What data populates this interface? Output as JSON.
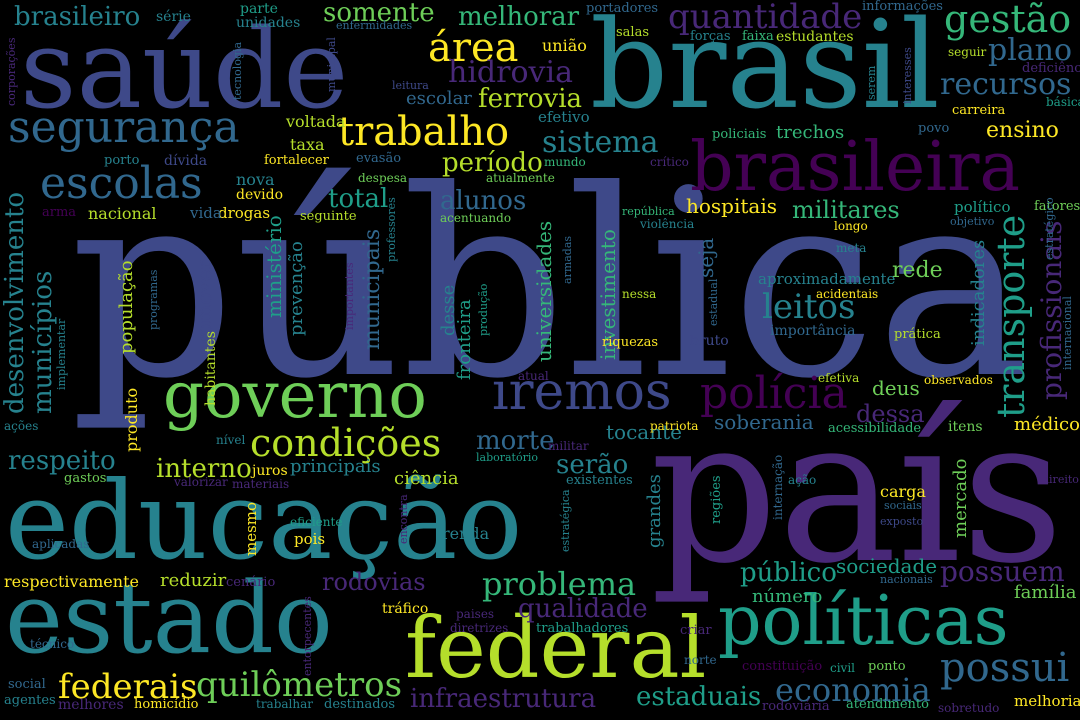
{
  "background": "#000000",
  "palette": {
    "c1": "#440154",
    "c2": "#482878",
    "c3": "#3e4989",
    "c4": "#31688e",
    "c5": "#26828e",
    "c6": "#1f9e89",
    "c7": "#35b779",
    "c8": "#6ece58",
    "c9": "#b5de2b",
    "c10": "#fde725"
  },
  "words": [
    {
      "text": "pública",
      "color": "c3"
    },
    {
      "text": "país",
      "color": "c2"
    },
    {
      "text": "educação",
      "color": "c5"
    },
    {
      "text": "saúde",
      "color": "c3"
    },
    {
      "text": "brasil",
      "color": "c5"
    },
    {
      "text": "estado",
      "color": "c5"
    },
    {
      "text": "federal",
      "color": "c9"
    },
    {
      "text": "políticas",
      "color": "c6"
    },
    {
      "text": "brasileira",
      "color": "c1"
    },
    {
      "text": "governo",
      "color": "c8"
    },
    {
      "text": "segurança",
      "color": "c4"
    },
    {
      "text": "escolas",
      "color": "c4"
    },
    {
      "text": "trabalho",
      "color": "c10"
    },
    {
      "text": "iremos",
      "color": "c3"
    },
    {
      "text": "polícia",
      "color": "c1"
    },
    {
      "text": "condições",
      "color": "c9"
    },
    {
      "text": "possui",
      "color": "c4"
    },
    {
      "text": "quilômetros",
      "color": "c8"
    },
    {
      "text": "federais",
      "color": "c10"
    },
    {
      "text": "problema",
      "color": "c7"
    },
    {
      "text": "economia",
      "color": "c4"
    },
    {
      "text": "gestão",
      "color": "c7"
    },
    {
      "text": "quantidade",
      "color": "c2"
    },
    {
      "text": "área",
      "color": "c10"
    },
    {
      "text": "hidrovia",
      "color": "c2"
    },
    {
      "text": "plano",
      "color": "c4"
    },
    {
      "text": "recursos",
      "color": "c4"
    },
    {
      "text": "ferrovia",
      "color": "c9"
    },
    {
      "text": "sistema",
      "color": "c5"
    },
    {
      "text": "período",
      "color": "c9"
    },
    {
      "text": "leitos",
      "color": "c5"
    },
    {
      "text": "militares",
      "color": "c7"
    },
    {
      "text": "transporte",
      "color": "c6"
    },
    {
      "text": "profissionais",
      "color": "c2"
    },
    {
      "text": "desenvolvimento",
      "color": "c5"
    },
    {
      "text": "municípios",
      "color": "c5"
    },
    {
      "text": "brasileiro",
      "color": "c5"
    },
    {
      "text": "somente",
      "color": "c8"
    },
    {
      "text": "melhorar",
      "color": "c7"
    },
    {
      "text": "alunos",
      "color": "c4"
    },
    {
      "text": "total",
      "color": "c6"
    },
    {
      "text": "morte",
      "color": "c4"
    },
    {
      "text": "respeito",
      "color": "c5"
    },
    {
      "text": "interno",
      "color": "c9"
    },
    {
      "text": "serão",
      "color": "c5"
    },
    {
      "text": "qualidade",
      "color": "c2"
    },
    {
      "text": "infraestrutura",
      "color": "c2"
    },
    {
      "text": "estaduais",
      "color": "c6"
    },
    {
      "text": "público",
      "color": "c6"
    },
    {
      "text": "possuem",
      "color": "c2"
    },
    {
      "text": "rodovias",
      "color": "c2"
    },
    {
      "text": "hospitais",
      "color": "c10"
    },
    {
      "text": "ensino",
      "color": "c10"
    },
    {
      "text": "rede",
      "color": "c8"
    },
    {
      "text": "dessa",
      "color": "c2"
    },
    {
      "text": "deus",
      "color": "c8"
    },
    {
      "text": "tocante",
      "color": "c5"
    },
    {
      "text": "soberania",
      "color": "c4"
    },
    {
      "text": "sociedade",
      "color": "c6"
    },
    {
      "text": "família",
      "color": "c8"
    },
    {
      "text": "médico",
      "color": "c10"
    },
    {
      "text": "principais",
      "color": "c5"
    },
    {
      "text": "ciência",
      "color": "c9"
    },
    {
      "text": "reduzir",
      "color": "c9"
    },
    {
      "text": "respectivamente",
      "color": "c10"
    },
    {
      "text": "renda",
      "color": "c5"
    },
    {
      "text": "mercado",
      "color": "c8"
    },
    {
      "text": "carga",
      "color": "c10"
    },
    {
      "text": "número",
      "color": "c7"
    },
    {
      "text": "trechos",
      "color": "c7"
    },
    {
      "text": "voltada",
      "color": "c9"
    },
    {
      "text": "taxa",
      "color": "c9"
    },
    {
      "text": "nova",
      "color": "c5"
    },
    {
      "text": "nacional",
      "color": "c9"
    },
    {
      "text": "drogas",
      "color": "c10"
    },
    {
      "text": "vida",
      "color": "c4"
    },
    {
      "text": "efetivo",
      "color": "c5"
    },
    {
      "text": "escolar",
      "color": "c4"
    },
    {
      "text": "união",
      "color": "c10"
    },
    {
      "text": "investimento",
      "color": "c7"
    },
    {
      "text": "universidades",
      "color": "c7"
    },
    {
      "text": "municipais",
      "color": "c4"
    },
    {
      "text": "ministério",
      "color": "c6"
    },
    {
      "text": "promover",
      "color": "c3"
    },
    {
      "text": "prevenção",
      "color": "c5"
    },
    {
      "text": "fronteira",
      "color": "c6"
    },
    {
      "text": "desse",
      "color": "c5"
    },
    {
      "text": "seja",
      "color": "c4"
    },
    {
      "text": "população",
      "color": "c9"
    },
    {
      "text": "indicadores",
      "color": "c5"
    },
    {
      "text": "grandes",
      "color": "c5"
    },
    {
      "text": "produto",
      "color": "c10"
    },
    {
      "text": "habitantes",
      "color": "c9"
    },
    {
      "text": "mesmo",
      "color": "c10"
    },
    {
      "text": "pois",
      "color": "c10"
    },
    {
      "text": "tráfico",
      "color": "c10"
    },
    {
      "text": "juros",
      "color": "c10"
    },
    {
      "text": "parte",
      "color": "c6"
    },
    {
      "text": "unidades",
      "color": "c5"
    },
    {
      "text": "série",
      "color": "c5"
    },
    {
      "text": "portadores",
      "color": "c4"
    },
    {
      "text": "informações",
      "color": "c4"
    },
    {
      "text": "salas",
      "color": "c9"
    },
    {
      "text": "forças",
      "color": "c5"
    },
    {
      "text": "faixa",
      "color": "c7"
    },
    {
      "text": "estudantes",
      "color": "c9"
    },
    {
      "text": "seguir",
      "color": "c9"
    },
    {
      "text": "deficiência",
      "color": "c2"
    },
    {
      "text": "básica",
      "color": "c6"
    },
    {
      "text": "carreira",
      "color": "c10"
    },
    {
      "text": "povo",
      "color": "c4"
    },
    {
      "text": "policiais",
      "color": "c7"
    },
    {
      "text": "porto",
      "color": "c5"
    },
    {
      "text": "dívida",
      "color": "c3"
    },
    {
      "text": "fortalecer",
      "color": "c10"
    },
    {
      "text": "evasão",
      "color": "c4"
    },
    {
      "text": "mundo",
      "color": "c7"
    },
    {
      "text": "crítico",
      "color": "c2"
    },
    {
      "text": "despesa",
      "color": "c8"
    },
    {
      "text": "atualmente",
      "color": "c8"
    },
    {
      "text": "devido",
      "color": "c10"
    },
    {
      "text": "arma",
      "color": "c1"
    },
    {
      "text": "seguinte",
      "color": "c9"
    },
    {
      "text": "acentuando",
      "color": "c8"
    },
    {
      "text": "república",
      "color": "c7"
    },
    {
      "text": "violência",
      "color": "c5"
    },
    {
      "text": "político",
      "color": "c6"
    },
    {
      "text": "objetivo",
      "color": "c4"
    },
    {
      "text": "longo",
      "color": "c10"
    },
    {
      "text": "meta",
      "color": "c5"
    },
    {
      "text": "fatores",
      "color": "c8"
    },
    {
      "text": "aproximadamente",
      "color": "c5"
    },
    {
      "text": "acidentais",
      "color": "c10"
    },
    {
      "text": "importância",
      "color": "c4"
    },
    {
      "text": "prática",
      "color": "c9"
    },
    {
      "text": "riquezas",
      "color": "c10"
    },
    {
      "text": "nessa",
      "color": "c9"
    },
    {
      "text": "bruto",
      "color": "c3"
    },
    {
      "text": "efetiva",
      "color": "c9"
    },
    {
      "text": "observados",
      "color": "c10"
    },
    {
      "text": "atual",
      "color": "c2"
    },
    {
      "text": "patriota",
      "color": "c10"
    },
    {
      "text": "acessibilidade",
      "color": "c7"
    },
    {
      "text": "itens",
      "color": "c8"
    },
    {
      "text": "nível",
      "color": "c5"
    },
    {
      "text": "laboratório",
      "color": "c6"
    },
    {
      "text": "militar",
      "color": "c2"
    },
    {
      "text": "existentes",
      "color": "c5"
    },
    {
      "text": "gastos",
      "color": "c8"
    },
    {
      "text": "valorizar",
      "color": "c2"
    },
    {
      "text": "materiais",
      "color": "c2"
    },
    {
      "text": "eficiente",
      "color": "c6"
    },
    {
      "text": "internação",
      "color": "c4"
    },
    {
      "text": "ação",
      "color": "c5"
    },
    {
      "text": "regiões",
      "color": "c6"
    },
    {
      "text": "civil",
      "color": "c6"
    },
    {
      "text": "sociais",
      "color": "c4"
    },
    {
      "text": "exposto",
      "color": "c3"
    },
    {
      "text": "direito",
      "color": "c2"
    },
    {
      "text": "aplicadas",
      "color": "c4"
    },
    {
      "text": "cenário",
      "color": "c2"
    },
    {
      "text": "nacionais",
      "color": "c4"
    },
    {
      "text": "paises",
      "color": "c2"
    },
    {
      "text": "diretrizes",
      "color": "c2"
    },
    {
      "text": "trabalhadores",
      "color": "c6"
    },
    {
      "text": "criar",
      "color": "c2"
    },
    {
      "text": "técnico",
      "color": "c4"
    },
    {
      "text": "norte",
      "color": "c4"
    },
    {
      "text": "constituição",
      "color": "c1"
    },
    {
      "text": "ponto",
      "color": "c8"
    },
    {
      "text": "social",
      "color": "c4"
    },
    {
      "text": "agentes",
      "color": "c5"
    },
    {
      "text": "melhores",
      "color": "c2"
    },
    {
      "text": "homicídio",
      "color": "c10"
    },
    {
      "text": "trabalhar",
      "color": "c5"
    },
    {
      "text": "destinados",
      "color": "c5"
    },
    {
      "text": "rodoviária",
      "color": "c2"
    },
    {
      "text": "atendimento",
      "color": "c7"
    },
    {
      "text": "sobretudo",
      "color": "c2"
    },
    {
      "text": "melhoria",
      "color": "c10"
    },
    {
      "text": "corporações",
      "color": "c2"
    },
    {
      "text": "tecnologia",
      "color": "c4"
    },
    {
      "text": "municipal",
      "color": "c3"
    },
    {
      "text": "enfermidades",
      "color": "c4"
    },
    {
      "text": "leitura",
      "color": "c3"
    },
    {
      "text": "serem",
      "color": "c5"
    },
    {
      "text": "interesses",
      "color": "c3"
    },
    {
      "text": "estratégico",
      "color": "c4"
    },
    {
      "text": "internacional",
      "color": "c4"
    },
    {
      "text": "implementar",
      "color": "c5"
    },
    {
      "text": "programas",
      "color": "c4"
    },
    {
      "text": "ações",
      "color": "c5"
    },
    {
      "text": "importantes",
      "color": "c2"
    },
    {
      "text": "produção",
      "color": "c6"
    },
    {
      "text": "professores",
      "color": "c5"
    },
    {
      "text": "armadas",
      "color": "c4"
    },
    {
      "text": "estadual",
      "color": "c4"
    },
    {
      "text": "estratégica",
      "color": "c5"
    },
    {
      "text": "encontra",
      "color": "c2"
    },
    {
      "text": "entorpecentes",
      "color": "c2"
    }
  ]
}
